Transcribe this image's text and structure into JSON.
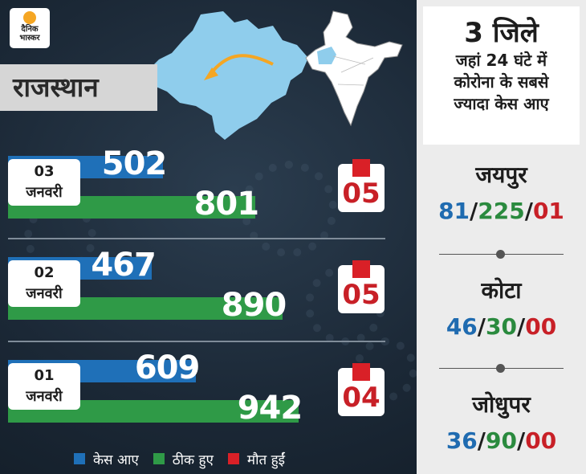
{
  "brand": {
    "line1": "दैनिक",
    "line2": "भास्कर"
  },
  "state": "राजस्थान",
  "colors": {
    "cases": "#1f70b8",
    "recovered": "#2f9a47",
    "deaths": "#d92027"
  },
  "chart_data": {
    "type": "bar",
    "categories": [
      "03 जनवरी",
      "02 जनवरी",
      "01 जनवरी"
    ],
    "category_parts": [
      {
        "day": "03",
        "month": "जनवरी"
      },
      {
        "day": "02",
        "month": "जनवरी"
      },
      {
        "day": "01",
        "month": "जनवरी"
      }
    ],
    "series": [
      {
        "name": "केस आए",
        "values": [
          502,
          467,
          609
        ],
        "labels": [
          "502",
          "467",
          "609"
        ]
      },
      {
        "name": "ठीक हुए",
        "values": [
          801,
          890,
          942
        ],
        "labels": [
          "801",
          "890",
          "942"
        ]
      },
      {
        "name": "मौत हुईं",
        "values": [
          5,
          5,
          4
        ],
        "labels": [
          "05",
          "05",
          "04"
        ]
      }
    ],
    "legend": [
      "केस आए",
      "ठीक हुए",
      "मौत हुईं"
    ],
    "legend_position": "bottom",
    "grid": false
  },
  "sidebar": {
    "title": "3 जिले",
    "subtitle_lines": [
      "जहां 24 घंटे में",
      "कोरोना के सबसे",
      "ज्यादा केस आए"
    ],
    "districts": [
      {
        "name": "जयपुर",
        "cases": "81",
        "recovered": "225",
        "deaths": "01"
      },
      {
        "name": "कोटा",
        "cases": "46",
        "recovered": "30",
        "deaths": "00"
      },
      {
        "name": "जोधुपर",
        "cases": "36",
        "recovered": "90",
        "deaths": "00"
      }
    ],
    "separator": "/"
  }
}
